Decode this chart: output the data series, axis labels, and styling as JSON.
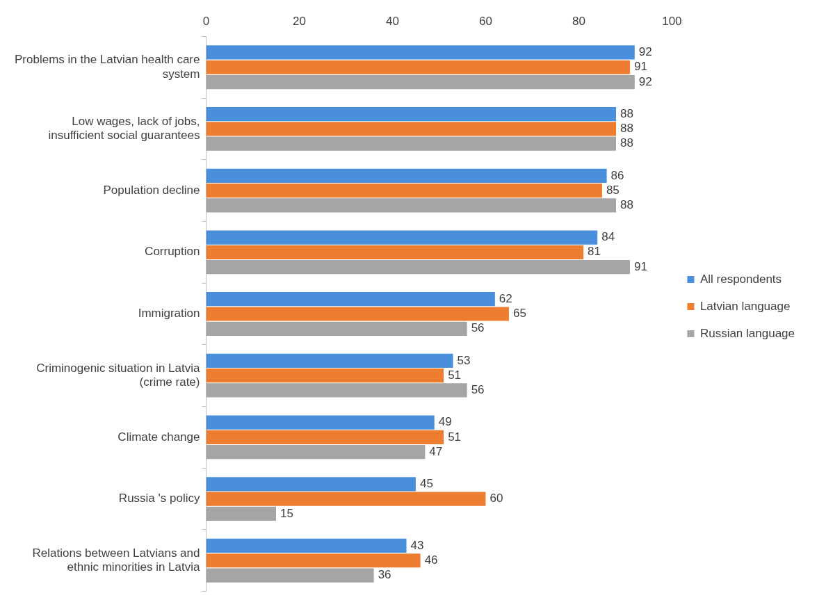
{
  "chart_data": {
    "type": "bar",
    "orientation": "horizontal",
    "categories": [
      "Problems in the Latvian health care system",
      "Low wages, lack of jobs, insufficient social guarantees",
      "Population decline",
      "Corruption",
      "Immigration",
      "Criminogenic situation in Latvia (crime rate)",
      "Climate change",
      "Russia 's policy",
      "Relations between Latvians and ethnic minorities in Latvia"
    ],
    "series": [
      {
        "name": "All respondents",
        "color": "#4a8fdc",
        "values": [
          92,
          88,
          86,
          84,
          62,
          53,
          49,
          45,
          43
        ]
      },
      {
        "name": "Latvian language",
        "color": "#ed7d31",
        "values": [
          91,
          88,
          85,
          81,
          65,
          51,
          51,
          60,
          46
        ]
      },
      {
        "name": "Russian language",
        "color": "#a5a5a5",
        "values": [
          92,
          88,
          88,
          91,
          56,
          56,
          47,
          15,
          36
        ]
      }
    ],
    "xlim": [
      0,
      100
    ],
    "xticks": [
      0,
      20,
      40,
      60,
      80,
      100
    ],
    "data_labels": true,
    "legend": "right"
  }
}
